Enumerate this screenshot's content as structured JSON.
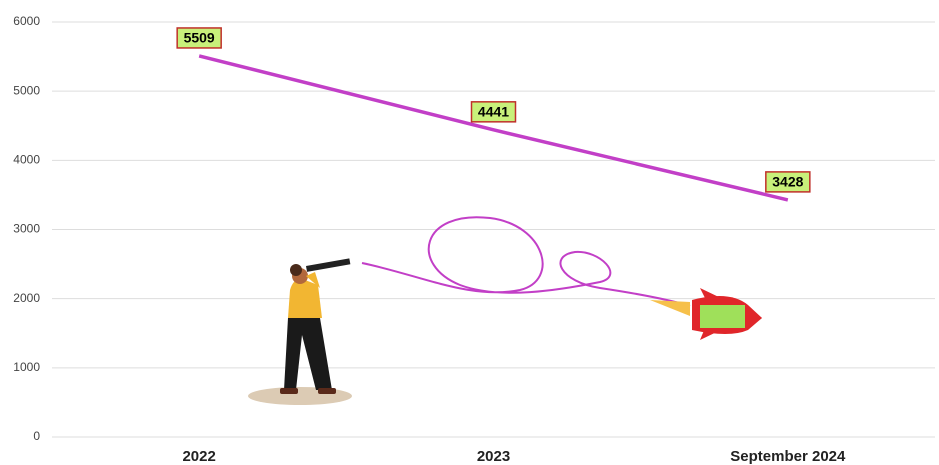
{
  "chart_data": {
    "type": "line",
    "categories": [
      "2022",
      "2023",
      "September 2024"
    ],
    "values": [
      5509,
      4441,
      3428
    ],
    "color": "#c23fc7",
    "ylim": [
      0,
      6000
    ],
    "yticks": [
      0,
      1000,
      2000,
      3000,
      4000,
      5000,
      6000
    ],
    "grid": true
  }
}
